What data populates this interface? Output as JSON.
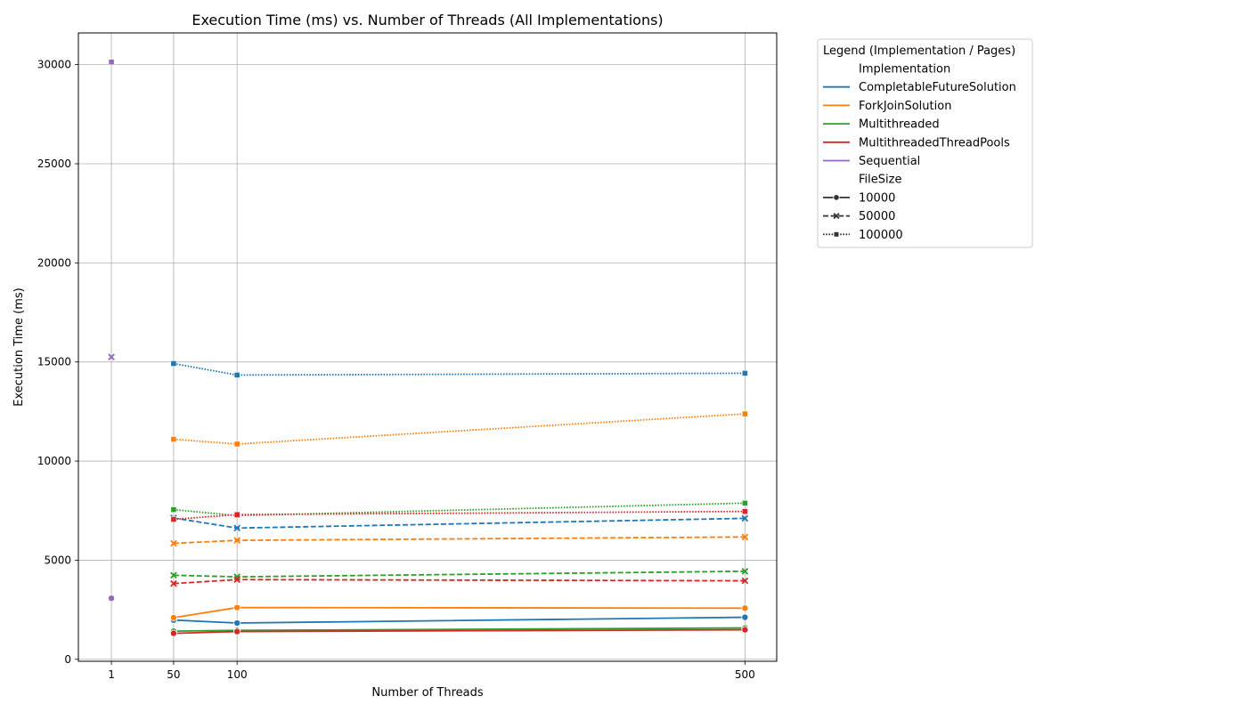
{
  "chart_data": {
    "type": "line",
    "title": "Execution Time (ms) vs. Number of Threads (All Implementations)",
    "xlabel": "Number of Threads",
    "ylabel": "Execution Time (ms)",
    "xlim": [
      -25,
      525
    ],
    "ylim": [
      -100,
      31600
    ],
    "xticks": [
      1,
      50,
      100,
      500
    ],
    "yticks": [
      0,
      5000,
      10000,
      15000,
      20000,
      25000,
      30000
    ],
    "grid": true,
    "legend": {
      "title": "Legend (Implementation / Pages)",
      "placement": "outside-top-right",
      "hue_header": "Implementation",
      "style_header": "FileSize"
    },
    "implementations": [
      {
        "name": "CompletableFutureSolution",
        "color": "#1f77b4"
      },
      {
        "name": "ForkJoinSolution",
        "color": "#ff7f0e"
      },
      {
        "name": "Multithreaded",
        "color": "#2ca02c"
      },
      {
        "name": "MultithreadedThreadPools",
        "color": "#d62728"
      },
      {
        "name": "Sequential",
        "color": "#9467bd"
      }
    ],
    "file_sizes": [
      {
        "name": "10000",
        "dash": "solid",
        "marker": "circle"
      },
      {
        "name": "50000",
        "dash": "dashed",
        "marker": "x"
      },
      {
        "name": "100000",
        "dash": "dotted",
        "marker": "square"
      }
    ],
    "series": [
      {
        "implementation": "CompletableFutureSolution",
        "file_size": "10000",
        "x": [
          50,
          100,
          500
        ],
        "y": [
          1980,
          1830,
          2120
        ]
      },
      {
        "implementation": "CompletableFutureSolution",
        "file_size": "50000",
        "x": [
          50,
          100,
          500
        ],
        "y": [
          7130,
          6620,
          7110
        ]
      },
      {
        "implementation": "CompletableFutureSolution",
        "file_size": "100000",
        "x": [
          50,
          100,
          500
        ],
        "y": [
          14920,
          14340,
          14430
        ]
      },
      {
        "implementation": "ForkJoinSolution",
        "file_size": "10000",
        "x": [
          50,
          100,
          500
        ],
        "y": [
          2100,
          2610,
          2580
        ]
      },
      {
        "implementation": "ForkJoinSolution",
        "file_size": "50000",
        "x": [
          50,
          100,
          500
        ],
        "y": [
          5850,
          6000,
          6170
        ]
      },
      {
        "implementation": "ForkJoinSolution",
        "file_size": "100000",
        "x": [
          50,
          100,
          500
        ],
        "y": [
          11100,
          10860,
          12380
        ]
      },
      {
        "implementation": "Multithreaded",
        "file_size": "10000",
        "x": [
          50,
          100,
          500
        ],
        "y": [
          1420,
          1460,
          1580
        ]
      },
      {
        "implementation": "Multithreaded",
        "file_size": "50000",
        "x": [
          50,
          100,
          500
        ],
        "y": [
          4240,
          4160,
          4440
        ]
      },
      {
        "implementation": "Multithreaded",
        "file_size": "100000",
        "x": [
          50,
          100,
          500
        ],
        "y": [
          7550,
          7250,
          7880
        ]
      },
      {
        "implementation": "MultithreadedThreadPools",
        "file_size": "10000",
        "x": [
          50,
          100,
          500
        ],
        "y": [
          1310,
          1400,
          1490
        ]
      },
      {
        "implementation": "MultithreadedThreadPools",
        "file_size": "50000",
        "x": [
          50,
          100,
          500
        ],
        "y": [
          3820,
          4020,
          3960
        ]
      },
      {
        "implementation": "MultithreadedThreadPools",
        "file_size": "100000",
        "x": [
          50,
          100,
          500
        ],
        "y": [
          7060,
          7300,
          7460
        ]
      },
      {
        "implementation": "Sequential",
        "file_size": "10000",
        "x": [
          1
        ],
        "y": [
          3080
        ]
      },
      {
        "implementation": "Sequential",
        "file_size": "50000",
        "x": [
          1
        ],
        "y": [
          15250
        ]
      },
      {
        "implementation": "Sequential",
        "file_size": "100000",
        "x": [
          1
        ],
        "y": [
          30130
        ]
      }
    ]
  }
}
